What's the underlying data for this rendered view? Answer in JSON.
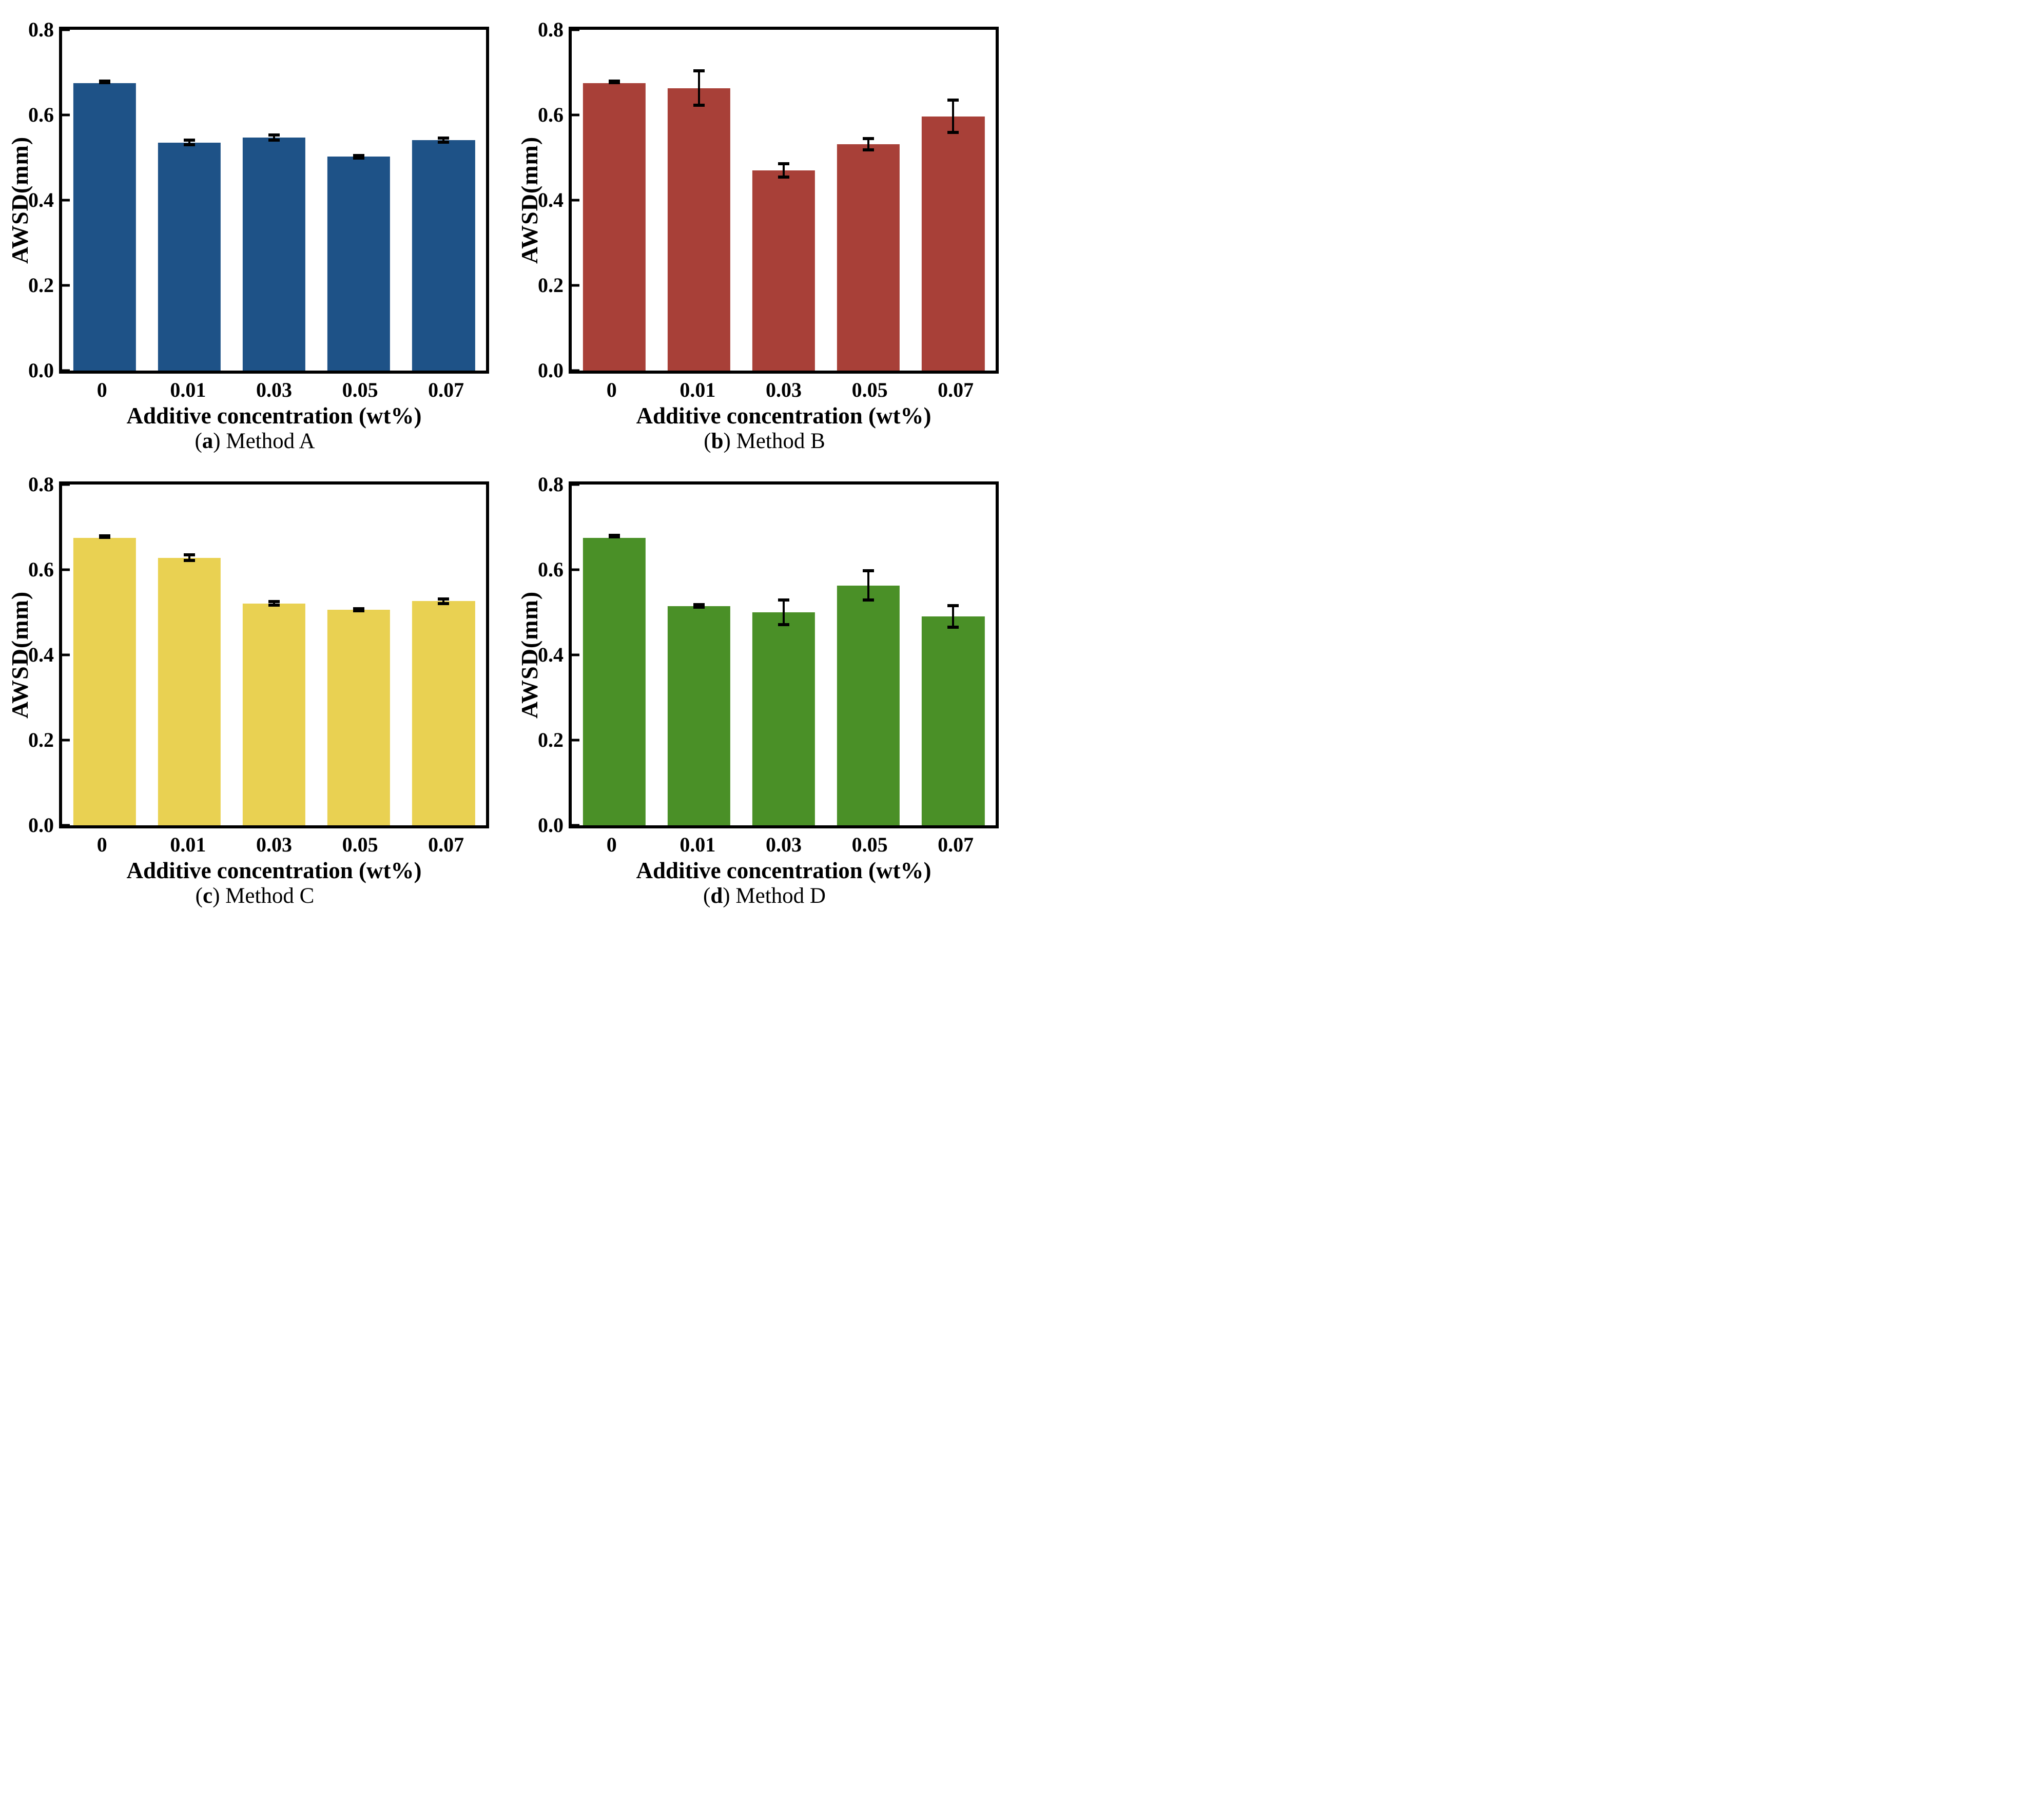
{
  "figure": {
    "xlabel": "Additive concentration (wt%)",
    "ylabel": "AWSD(mm)",
    "categories": [
      "0",
      "0.01",
      "0.03",
      "0.05",
      "0.07"
    ],
    "yticks": [
      "0.0",
      "0.2",
      "0.4",
      "0.6",
      "0.8"
    ],
    "ylim": [
      0,
      0.8
    ],
    "caption_open": "(",
    "caption_close": ") "
  },
  "chart_data": [
    {
      "type": "bar",
      "panel_letter": "a",
      "title": "Method A",
      "color": "#1e5287",
      "xlabel": "Additive concentration (wt%)",
      "ylabel": "AWSD(mm)",
      "categories": [
        "0",
        "0.01",
        "0.03",
        "0.05",
        "0.07"
      ],
      "values": [
        0.675,
        0.535,
        0.547,
        0.502,
        0.541
      ],
      "errors": [
        0.003,
        0.009,
        0.01,
        0.007,
        0.009
      ],
      "ylim": [
        0,
        0.8
      ],
      "ytick_values": [
        0.0,
        0.2,
        0.4,
        0.6,
        0.8
      ],
      "grid": "off",
      "legend": "none"
    },
    {
      "type": "bar",
      "panel_letter": "b",
      "title": "Method B",
      "color": "#a84038",
      "xlabel": "Additive concentration (wt%)",
      "ylabel": "AWSD(mm)",
      "categories": [
        "0",
        "0.01",
        "0.03",
        "0.05",
        "0.07"
      ],
      "values": [
        0.675,
        0.663,
        0.47,
        0.531,
        0.597
      ],
      "errors": [
        0.003,
        0.044,
        0.019,
        0.017,
        0.041
      ],
      "ylim": [
        0,
        0.8
      ],
      "ytick_values": [
        0.0,
        0.2,
        0.4,
        0.6,
        0.8
      ],
      "grid": "off",
      "legend": "none"
    },
    {
      "type": "bar",
      "panel_letter": "c",
      "title": "Method C",
      "color": "#e9d152",
      "xlabel": "Additive concentration (wt%)",
      "ylabel": "AWSD(mm)",
      "categories": [
        "0",
        "0.01",
        "0.03",
        "0.05",
        "0.07"
      ],
      "values": [
        0.675,
        0.628,
        0.521,
        0.506,
        0.526
      ],
      "errors": [
        0.003,
        0.01,
        0.008,
        0.006,
        0.009
      ],
      "ylim": [
        0,
        0.8
      ],
      "ytick_values": [
        0.0,
        0.2,
        0.4,
        0.6,
        0.8
      ],
      "grid": "off",
      "legend": "none"
    },
    {
      "type": "bar",
      "panel_letter": "d",
      "title": "Method D",
      "color": "#4a9027",
      "xlabel": "Additive concentration (wt%)",
      "ylabel": "AWSD(mm)",
      "categories": [
        "0",
        "0.01",
        "0.03",
        "0.05",
        "0.07"
      ],
      "values": [
        0.675,
        0.515,
        0.5,
        0.563,
        0.49
      ],
      "errors": [
        0.002,
        0.007,
        0.032,
        0.038,
        0.029
      ],
      "ylim": [
        0,
        0.8
      ],
      "ytick_values": [
        0.0,
        0.2,
        0.4,
        0.6,
        0.8
      ],
      "grid": "off",
      "legend": "none"
    }
  ]
}
